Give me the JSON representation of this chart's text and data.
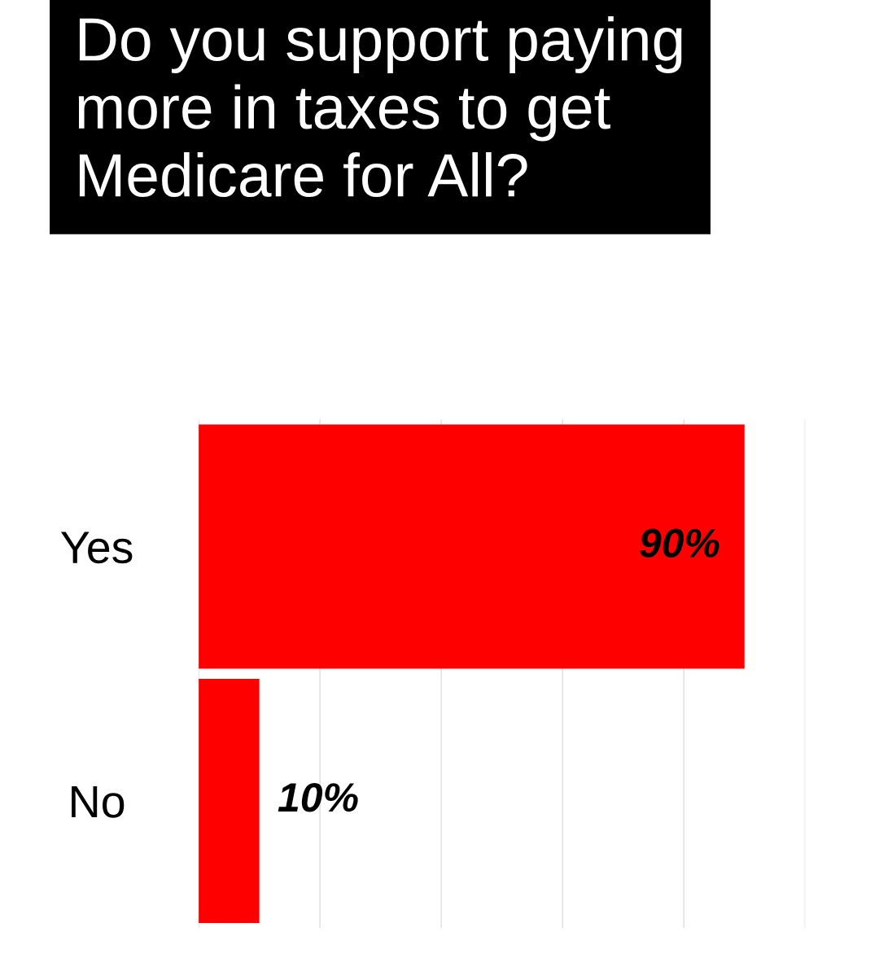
{
  "chart_data": {
    "type": "bar",
    "orientation": "horizontal",
    "title": "Do you support paying\nmore in taxes to get\nMedicare for All?",
    "categories": [
      "Yes",
      "No"
    ],
    "values": [
      90,
      10
    ],
    "value_labels": [
      "90%",
      "10%"
    ],
    "color": "#ff0000",
    "xlim": [
      0,
      100
    ],
    "xticks": [
      {
        "value": 0,
        "label": null
      },
      {
        "value": 20,
        "label": null
      },
      {
        "value": 40,
        "label": null
      },
      {
        "value": 60,
        "label": null
      },
      {
        "value": 80,
        "label": null
      },
      {
        "value": 100,
        "label": null
      }
    ],
    "grid": "x",
    "tick_labels": "y"
  }
}
